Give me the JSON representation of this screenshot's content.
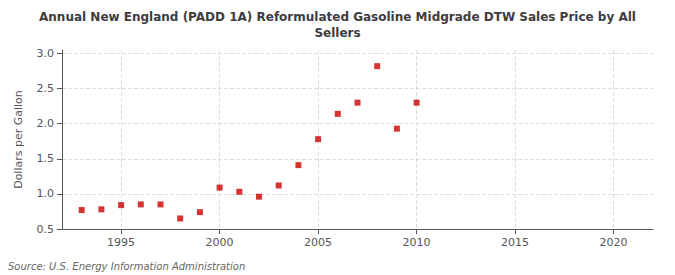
{
  "chart_data": {
    "type": "scatter",
    "title": "Annual New England (PADD 1A) Reformulated Gasoline Midgrade DTW Sales Price by All\nSellers",
    "ylabel": "Dollars per Gallon",
    "annotation": "Source: U.S. Energy Information Administration",
    "x": [
      1993,
      1994,
      1995,
      1996,
      1997,
      1998,
      1999,
      2000,
      2001,
      2002,
      2003,
      2004,
      2005,
      2006,
      2007,
      2008,
      2009,
      2010
    ],
    "values": [
      0.77,
      0.78,
      0.84,
      0.85,
      0.85,
      0.65,
      0.74,
      1.09,
      1.03,
      0.96,
      1.12,
      1.41,
      1.78,
      2.14,
      2.3,
      2.82,
      1.93,
      2.3
    ],
    "color": "#cc0000",
    "marker": "square",
    "xlim": [
      1992,
      2022
    ],
    "ylim": [
      0.5,
      3.05
    ],
    "xticks": [
      1995,
      2000,
      2005,
      2010,
      2015,
      2020
    ],
    "yticks": [
      0.5,
      {
        "value": 1.0,
        "label": "1.0"
      },
      1.5,
      {
        "value": 2.0,
        "label": "2.0"
      },
      2.5,
      {
        "value": 3.0,
        "label": "3.0"
      }
    ],
    "grid": true
  }
}
